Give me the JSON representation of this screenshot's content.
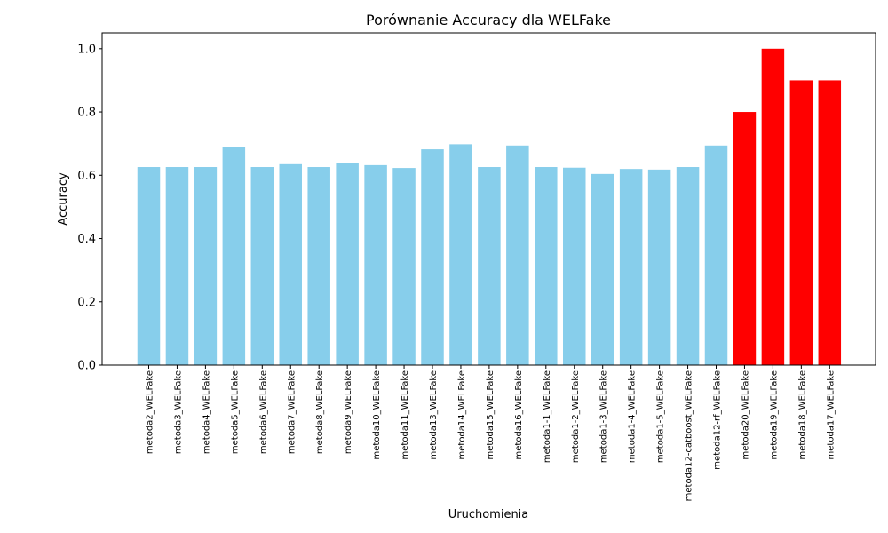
{
  "chart_data": {
    "type": "bar",
    "title": "Porównanie Accuracy dla WELFake",
    "xlabel": "Uruchomienia",
    "ylabel": "Accuracy",
    "ylim": [
      0,
      1.05
    ],
    "yticks": [
      "0.0",
      "0.2",
      "0.4",
      "0.6",
      "0.8",
      "1.0"
    ],
    "ytick_values": [
      0.0,
      0.2,
      0.4,
      0.6,
      0.8,
      1.0
    ],
    "grid": false,
    "colors": {
      "default": "#87ceeb",
      "highlight": "#ff0000"
    },
    "categories": [
      "metoda2_WELFake",
      "metoda3_WELFake",
      "metoda4_WELFake",
      "metoda5_WELFake",
      "metoda6_WELFake",
      "metoda7_WELFake",
      "metoda8_WELFake",
      "metoda9_WELFake",
      "metoda10_WELFake",
      "metoda11_WELFake",
      "metoda13_WELFake",
      "metoda14_WELFake",
      "metoda15_WELFake",
      "metoda16_WELFake",
      "metoda1-1_WELFake",
      "metoda1-2_WELFake",
      "metoda1-3_WELFake",
      "metoda1-4_WELFake",
      "metoda1-5_WELFake",
      "metoda12-catboost_WELFake",
      "metoda12-rf_WELFake",
      "metoda20_WELFake",
      "metoda19_WELFake",
      "metoda18_WELFake",
      "metoda17_WELFake"
    ],
    "values": [
      0.626,
      0.626,
      0.626,
      0.688,
      0.626,
      0.635,
      0.626,
      0.64,
      0.632,
      0.623,
      0.682,
      0.698,
      0.626,
      0.694,
      0.626,
      0.624,
      0.604,
      0.62,
      0.618,
      0.626,
      0.694,
      0.8,
      1.0,
      0.9,
      0.9
    ],
    "highlight": [
      false,
      false,
      false,
      false,
      false,
      false,
      false,
      false,
      false,
      false,
      false,
      false,
      false,
      false,
      false,
      false,
      false,
      false,
      false,
      false,
      false,
      true,
      true,
      true,
      true
    ]
  }
}
